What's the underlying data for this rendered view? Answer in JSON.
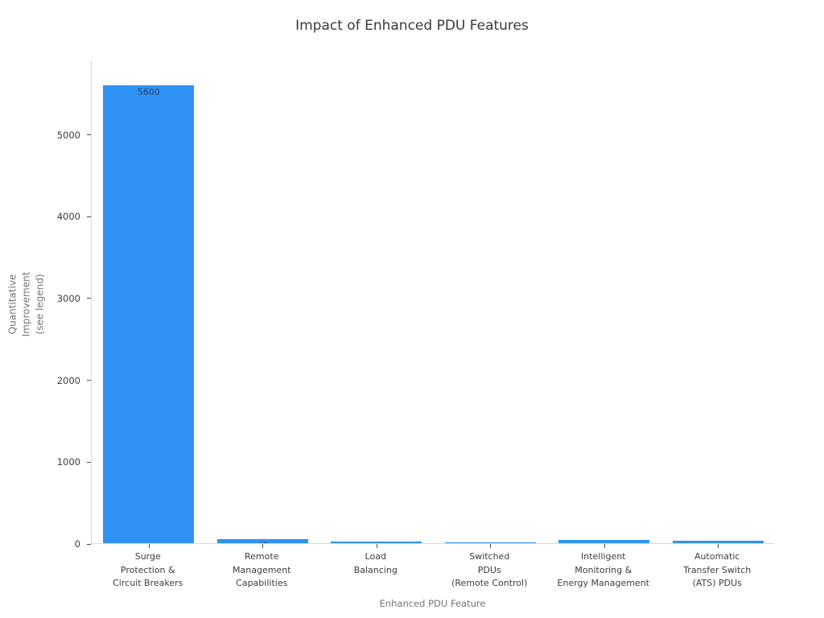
{
  "title": "Impact of Enhanced PDU Features",
  "chart_data": {
    "type": "bar",
    "title": "Impact of Enhanced PDU Features",
    "xlabel": "Enhanced PDU Feature",
    "ylabel": "Quantitative\nImprovement\n(see legend)",
    "categories": [
      "Surge\nProtection &\nCircuit Breakers",
      "Remote\nManagement\nCapabilities",
      "Load\nBalancing",
      "Switched\nPDUs\n(Remote Control)",
      "Intelligent\nMonitoring &\nEnergy Management",
      "Automatic\nTransfer Switch\n(ATS) PDUs"
    ],
    "values": [
      5600,
      45,
      15,
      12,
      35,
      30
    ],
    "bar_labels": [
      "5600",
      "45",
      "15",
      "12",
      "35",
      "30"
    ],
    "visible_bar_labels": [
      "5600"
    ],
    "yticks": [
      0,
      1000,
      2000,
      3000,
      4000,
      5000
    ],
    "ylim": [
      0,
      5900
    ],
    "bar_color": "#2e93f5",
    "grid": false,
    "legend_position": "none",
    "background_color": "#ffffff"
  }
}
